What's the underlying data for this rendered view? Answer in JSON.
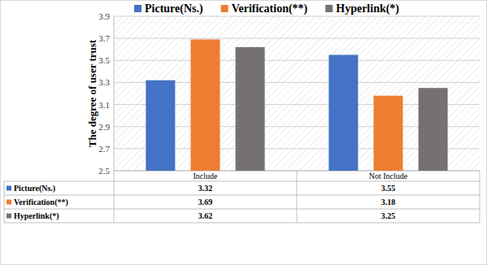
{
  "chart_data": {
    "type": "bar",
    "y_label": "The degree of user trust",
    "categories": [
      "Include",
      "Not Include"
    ],
    "series": [
      {
        "name": "Picture(Ns.)",
        "color": "#4472c4",
        "values": [
          3.32,
          3.55
        ]
      },
      {
        "name": "Verification(**)",
        "color": "#ed7d31",
        "values": [
          3.69,
          3.18
        ]
      },
      {
        "name": "Hyperlink(*)",
        "color": "#767171",
        "values": [
          3.62,
          3.25
        ]
      }
    ],
    "ylim": [
      2.5,
      3.9
    ],
    "yticks": [
      2.5,
      2.7,
      2.9,
      3.1,
      3.3,
      3.5,
      3.7,
      3.9
    ],
    "grid": true,
    "legend": "top"
  }
}
